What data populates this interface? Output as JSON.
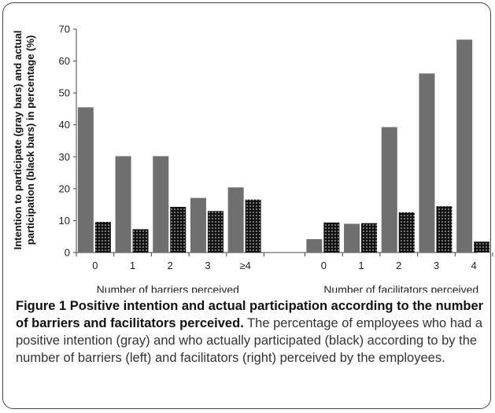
{
  "chart_data": {
    "type": "bar",
    "ylabel_line1": "Intention to participate (gray bars) and actual",
    "ylabel_line2": "participation (black bars) in percentage (%)",
    "ylim": [
      0,
      70
    ],
    "yticks": [
      0,
      10,
      20,
      30,
      40,
      50,
      60,
      70
    ],
    "grid": false,
    "colors": {
      "intention": "#6f6f6f",
      "participation": "#111111"
    },
    "groups": [
      {
        "xlabel": "Number of barriers perceived",
        "categories": [
          "0",
          "1",
          "2",
          "3",
          "≥4"
        ],
        "series": [
          {
            "key": "intention",
            "values": [
              45.5,
              30.2,
              30.2,
              17.1,
              20.4
            ]
          },
          {
            "key": "participation",
            "values": [
              9.6,
              7.3,
              14.3,
              13.0,
              16.6
            ]
          }
        ]
      },
      {
        "xlabel": "Number of facilitators perceived",
        "categories": [
          "0",
          "1",
          "2",
          "3",
          "4"
        ],
        "series": [
          {
            "key": "intention",
            "values": [
              4.2,
              9.0,
              39.3,
              56.1,
              66.7
            ]
          },
          {
            "key": "participation",
            "values": [
              9.4,
              9.2,
              12.6,
              14.5,
              3.4
            ]
          }
        ]
      }
    ]
  },
  "caption": {
    "title": "Figure 1 Positive intention and actual participation according to the number of barriers and facilitators perceived.",
    "body": "The percentage of employees who had a positive intention (gray) and who actually participated (black) according to by the number of barriers (left) and facilitators (right) perceived by the employees."
  }
}
